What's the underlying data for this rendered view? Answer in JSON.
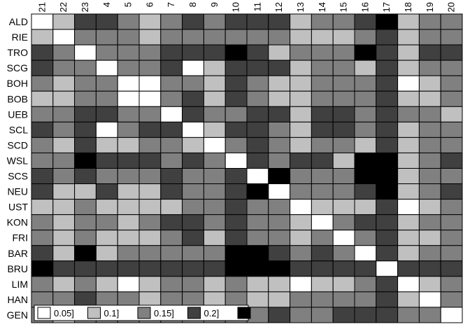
{
  "chart_data": {
    "type": "heatmap",
    "title": "",
    "xlabel": "",
    "ylabel": "",
    "x_labels": [
      "21",
      "22",
      "23",
      "4",
      "5",
      "6",
      "7",
      "8",
      "9",
      "10",
      "11",
      "12",
      "13",
      "14",
      "15",
      "16",
      "17",
      "18",
      "19",
      "20"
    ],
    "y_labels": [
      "ALD",
      "RIE",
      "TRO",
      "SCG",
      "BOH",
      "BOB",
      "UEB",
      "SCL",
      "SCD",
      "WSL",
      "SCS",
      "NEU",
      "UST",
      "KON",
      "FRI",
      "BAR",
      "BRU",
      "LIM",
      "HAN",
      "GEN"
    ],
    "legend": {
      "placement": "bottom-left",
      "entries": [
        "0.05]",
        "0.1]",
        "0.15]",
        "0.2]",
        ""
      ],
      "levels": [
        1,
        2,
        3,
        4,
        5
      ]
    },
    "level_colors": [
      "#ffffff",
      "#c0c0c0",
      "#808080",
      "#404040",
      "#000000"
    ],
    "values": [
      [
        1,
        2,
        4,
        4,
        3,
        2,
        3,
        4,
        3,
        4,
        4,
        4,
        2,
        3,
        3,
        4,
        5,
        2,
        3,
        3
      ],
      [
        2,
        1,
        3,
        3,
        3,
        2,
        3,
        3,
        3,
        3,
        3,
        3,
        2,
        2,
        2,
        3,
        4,
        2,
        3,
        3
      ],
      [
        4,
        3,
        1,
        3,
        3,
        3,
        4,
        4,
        4,
        5,
        4,
        2,
        3,
        3,
        3,
        5,
        4,
        2,
        4,
        4
      ],
      [
        4,
        3,
        3,
        1,
        3,
        3,
        4,
        1,
        2,
        4,
        4,
        4,
        2,
        3,
        3,
        2,
        4,
        2,
        3,
        3
      ],
      [
        3,
        2,
        3,
        3,
        1,
        1,
        3,
        3,
        2,
        4,
        3,
        2,
        2,
        3,
        3,
        3,
        4,
        1,
        2,
        3
      ],
      [
        2,
        2,
        3,
        3,
        1,
        1,
        3,
        4,
        2,
        4,
        3,
        2,
        2,
        3,
        3,
        3,
        4,
        2,
        2,
        3
      ],
      [
        3,
        3,
        4,
        4,
        3,
        3,
        1,
        4,
        3,
        3,
        4,
        4,
        2,
        4,
        4,
        3,
        4,
        3,
        3,
        2
      ],
      [
        4,
        3,
        4,
        1,
        3,
        4,
        4,
        1,
        2,
        4,
        4,
        3,
        2,
        4,
        4,
        3,
        4,
        2,
        3,
        3
      ],
      [
        3,
        2,
        4,
        2,
        2,
        3,
        3,
        2,
        1,
        3,
        4,
        3,
        2,
        3,
        3,
        2,
        4,
        2,
        3,
        3
      ],
      [
        3,
        3,
        5,
        4,
        4,
        4,
        3,
        4,
        3,
        1,
        4,
        3,
        4,
        4,
        2,
        5,
        5,
        2,
        3,
        4
      ],
      [
        4,
        3,
        4,
        3,
        3,
        3,
        4,
        3,
        3,
        4,
        1,
        5,
        3,
        3,
        3,
        5,
        5,
        2,
        3,
        3
      ],
      [
        4,
        2,
        2,
        4,
        2,
        2,
        4,
        3,
        3,
        4,
        5,
        1,
        3,
        3,
        3,
        4,
        5,
        2,
        3,
        4
      ],
      [
        2,
        2,
        3,
        2,
        2,
        2,
        2,
        3,
        3,
        4,
        3,
        3,
        1,
        2,
        2,
        2,
        4,
        1,
        2,
        3
      ],
      [
        3,
        2,
        3,
        3,
        2,
        3,
        4,
        4,
        3,
        4,
        3,
        3,
        2,
        1,
        3,
        4,
        4,
        2,
        3,
        3
      ],
      [
        3,
        2,
        3,
        2,
        2,
        2,
        3,
        4,
        2,
        4,
        3,
        3,
        2,
        3,
        1,
        3,
        4,
        2,
        2,
        3
      ],
      [
        4,
        2,
        5,
        2,
        3,
        3,
        3,
        3,
        3,
        5,
        5,
        4,
        3,
        4,
        3,
        1,
        4,
        2,
        3,
        3
      ],
      [
        5,
        4,
        4,
        4,
        4,
        4,
        4,
        4,
        4,
        5,
        5,
        5,
        4,
        4,
        4,
        4,
        1,
        4,
        4,
        4
      ],
      [
        3,
        2,
        3,
        2,
        1,
        2,
        3,
        3,
        2,
        3,
        2,
        2,
        1,
        2,
        2,
        3,
        4,
        1,
        2,
        3
      ],
      [
        3,
        3,
        4,
        3,
        3,
        2,
        3,
        3,
        2,
        3,
        2,
        2,
        3,
        3,
        3,
        3,
        4,
        2,
        1,
        3
      ],
      [
        3,
        2,
        3,
        3,
        3,
        3,
        3,
        3,
        3,
        3,
        3,
        4,
        3,
        3,
        4,
        4,
        4,
        3,
        3,
        1
      ]
    ]
  }
}
